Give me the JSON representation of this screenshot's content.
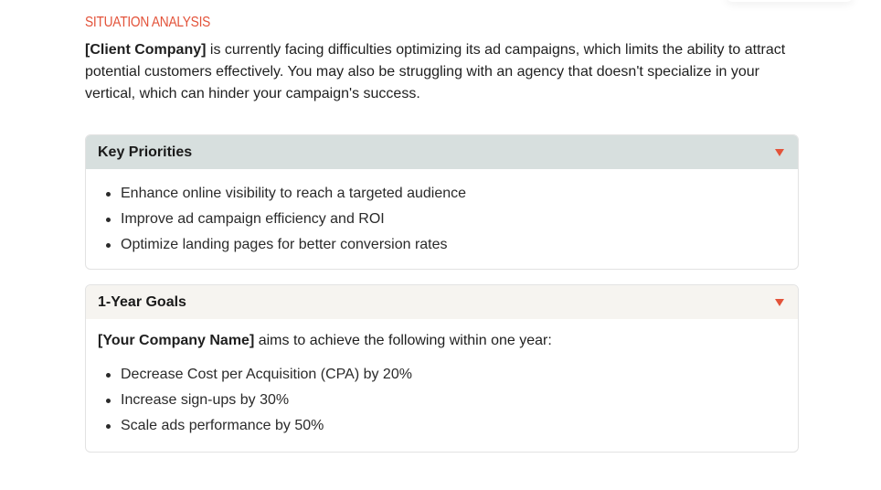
{
  "situation": {
    "heading": "SITUATION ANALYSIS",
    "intro_bold": "[Client Company]",
    "intro_text": " is currently facing difficulties optimizing its ad campaigns, which limits the ability to attract potential customers effectively. You may also be struggling with an agency that doesn't specialize in your vertical, which can hinder your campaign's success."
  },
  "priorities": {
    "title": "Key Priorities",
    "items": [
      "Enhance online visibility to reach a targeted audience",
      "Improve ad campaign efficiency and ROI",
      "Optimize landing pages for better conversion rates"
    ]
  },
  "goals": {
    "title": "1-Year Goals",
    "lead_bold": "[Your Company Name]",
    "lead_text": " aims to achieve the following within one year:",
    "items": [
      "Decrease Cost per Acquisition (CPA) by 20%",
      "Increase sign-ups by 30%",
      "Scale ads performance by 50%"
    ]
  },
  "colors": {
    "accent": "#e3533a",
    "priorities_header_bg": "#d7dfde",
    "goals_header_bg": "#f6f4f0"
  },
  "icons": {
    "collapse": "caret-down-icon"
  }
}
